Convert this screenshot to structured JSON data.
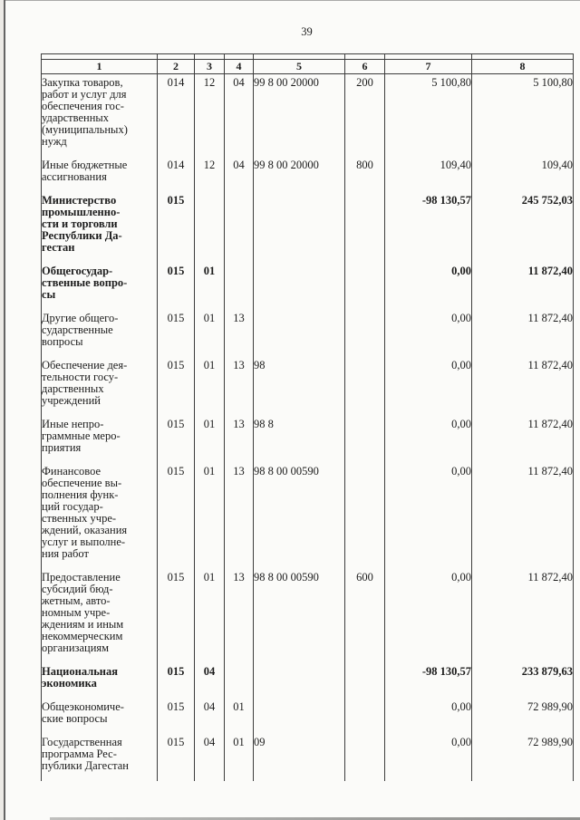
{
  "page": {
    "number": "39"
  },
  "table": {
    "header": [
      "1",
      "2",
      "3",
      "4",
      "5",
      "6",
      "7",
      "8"
    ],
    "rows": [
      {
        "c1": "Закупка товаров,\nработ и услуг для\nобеспечения гос-\nударственных\n(муниципальных)\nнужд",
        "c2": "014",
        "c3": "12",
        "c4": "04",
        "c5": "99 8 00 20000",
        "c6": "200",
        "c7": "5 100,80",
        "c8": "5 100,80",
        "bold": false
      },
      {
        "c1": "Иные бюджетные\nассигнования",
        "c2": "014",
        "c3": "12",
        "c4": "04",
        "c5": "99 8 00 20000",
        "c6": "800",
        "c7": "109,40",
        "c8": "109,40",
        "bold": false
      },
      {
        "c1": "Министерство\nпромышленно-\nсти и торговли\nРеспублики Да-\nгестан",
        "c2": "015",
        "c3": "",
        "c4": "",
        "c5": "",
        "c6": "",
        "c7": "-98 130,57",
        "c8": "245 752,03",
        "bold": true
      },
      {
        "c1": "Общегосудар-\nственные вопро-\nсы",
        "c2": "015",
        "c3": "01",
        "c4": "",
        "c5": "",
        "c6": "",
        "c7": "0,00",
        "c8": "11 872,40",
        "bold": true
      },
      {
        "c1": "Другие общего-\nсударственные\nвопросы",
        "c2": "015",
        "c3": "01",
        "c4": "13",
        "c5": "",
        "c6": "",
        "c7": "0,00",
        "c8": "11 872,40",
        "bold": false
      },
      {
        "c1": "Обеспечение дея-\nтельности госу-\nдарственных\nучреждений",
        "c2": "015",
        "c3": "01",
        "c4": "13",
        "c5": "98",
        "c6": "",
        "c7": "0,00",
        "c8": "11 872,40",
        "bold": false
      },
      {
        "c1": "Иные непро-\nграммные меро-\nприятия",
        "c2": "015",
        "c3": "01",
        "c4": "13",
        "c5": "98 8",
        "c6": "",
        "c7": "0,00",
        "c8": "11 872,40",
        "bold": false
      },
      {
        "c1": "Финансовое\nобеспечение вы-\nполнения функ-\nций государ-\nственных учре-\nждений, оказания\nуслуг и выполне-\nния работ",
        "c2": "015",
        "c3": "01",
        "c4": "13",
        "c5": "98 8 00 00590",
        "c6": "",
        "c7": "0,00",
        "c8": "11 872,40",
        "bold": false
      },
      {
        "c1": "Предоставление\nсубсидий бюд-\nжетным, авто-\nномным учре-\nждениям и иным\nнекоммерческим\nорганизациям",
        "c2": "015",
        "c3": "01",
        "c4": "13",
        "c5": "98 8 00 00590",
        "c6": "600",
        "c7": "0,00",
        "c8": "11 872,40",
        "bold": false
      },
      {
        "c1": "Национальная\nэкономика",
        "c2": "015",
        "c3": "04",
        "c4": "",
        "c5": "",
        "c6": "",
        "c7": "-98 130,57",
        "c8": "233 879,63",
        "bold": true
      },
      {
        "c1": "Общеэкономиче-\nские вопросы",
        "c2": "015",
        "c3": "04",
        "c4": "01",
        "c5": "",
        "c6": "",
        "c7": "0,00",
        "c8": "72 989,90",
        "bold": false
      },
      {
        "c1": "Государственная\nпрограмма Рес-\nпублики Дагестан",
        "c2": "015",
        "c3": "04",
        "c4": "01",
        "c5": "09",
        "c6": "",
        "c7": "0,00",
        "c8": "72 989,90",
        "bold": false
      }
    ]
  }
}
